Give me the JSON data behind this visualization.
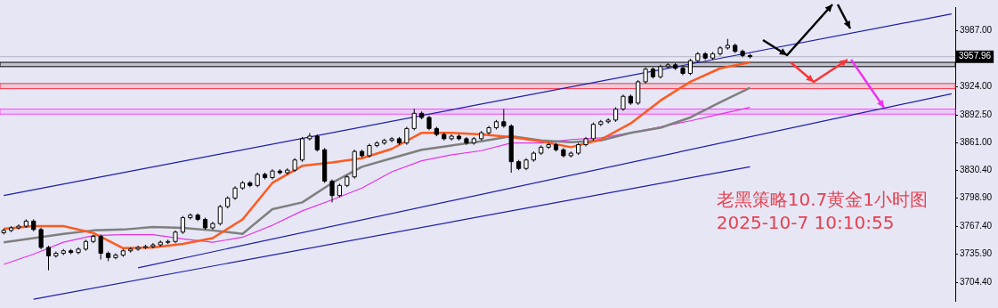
{
  "chart_data": {
    "type": "candlestick",
    "categories": [
      null,
      null,
      null,
      null,
      null,
      null,
      null,
      null,
      null,
      null,
      null,
      null,
      null,
      null,
      null,
      null,
      null,
      null,
      null,
      null,
      null,
      null,
      null,
      null,
      null,
      null,
      null,
      null,
      null,
      null,
      null,
      null,
      null,
      null,
      null,
      null,
      null,
      null,
      null,
      null,
      null,
      null,
      null,
      null,
      null,
      null,
      null,
      null,
      null,
      null,
      null,
      null,
      null,
      null,
      null,
      null,
      null,
      null,
      null,
      null,
      null,
      null,
      null,
      null,
      null,
      null,
      null,
      null,
      null,
      null,
      null,
      null,
      null,
      null,
      null,
      null,
      null,
      null,
      null,
      null,
      null,
      null,
      null,
      null,
      null,
      null,
      null,
      null,
      null,
      null,
      null,
      null,
      null,
      null,
      null,
      null,
      null,
      null,
      null,
      null,
      null,
      null,
      null,
      null,
      null,
      null,
      null,
      null,
      null,
      null,
      null,
      null,
      null,
      null,
      null,
      null,
      null,
      null,
      null,
      null,
      null,
      null,
      null,
      null,
      null,
      null,
      null,
      null
    ],
    "ohlc": [
      [
        3760.0,
        3764.6,
        3758.0,
        3762.6
      ],
      [
        3762.6,
        3767.5,
        3760.6,
        3765.5
      ],
      [
        3765.5,
        3769.4,
        3763.5,
        3767.4
      ],
      [
        3767.4,
        3775.1,
        3765.4,
        3773.1
      ],
      [
        3773.1,
        3775.1,
        3761.6,
        3763.6
      ],
      [
        3763.6,
        3765.6,
        3741.5,
        3743.5
      ],
      [
        3743.5,
        3745.5,
        3717.8,
        3734.0
      ],
      [
        3734.0,
        3738.9,
        3732.0,
        3736.9
      ],
      [
        3736.9,
        3741.7,
        3734.9,
        3739.7
      ],
      [
        3739.7,
        3741.7,
        3735.8,
        3737.8
      ],
      [
        3737.8,
        3743.6,
        3735.8,
        3741.6
      ],
      [
        3741.6,
        3752.2,
        3739.6,
        3750.2
      ],
      [
        3750.2,
        3757.9,
        3748.2,
        3755.9
      ],
      [
        3755.9,
        3757.9,
        3730.0,
        3736.9
      ],
      [
        3736.9,
        3738.9,
        3728.0,
        3732.1
      ],
      [
        3732.1,
        3736.9,
        3730.1,
        3734.9
      ],
      [
        3734.9,
        3741.7,
        3732.9,
        3739.7
      ],
      [
        3739.7,
        3743.6,
        3737.7,
        3741.6
      ],
      [
        3741.6,
        3745.5,
        3739.6,
        3743.5
      ],
      [
        3743.5,
        3746.5,
        3741.5,
        3744.5
      ],
      [
        3744.5,
        3748.4,
        3742.5,
        3746.4
      ],
      [
        3746.4,
        3751.3,
        3744.4,
        3749.3
      ],
      [
        3749.3,
        3752.2,
        3747.3,
        3750.2
      ],
      [
        3750.2,
        3762.7,
        3748.2,
        3760.7
      ],
      [
        3760.7,
        3778.9,
        3758.7,
        3776.9
      ],
      [
        3776.9,
        3781.8,
        3774.9,
        3779.8
      ],
      [
        3779.8,
        3781.8,
        3773.0,
        3775.0
      ],
      [
        3775.0,
        3777.0,
        3763.5,
        3765.5
      ],
      [
        3765.5,
        3772.3,
        3763.5,
        3770.3
      ],
      [
        3770.3,
        3791.4,
        3768.3,
        3789.4
      ],
      [
        3789.4,
        3800.9,
        3787.4,
        3798.9
      ],
      [
        3798.9,
        3812.3,
        3796.9,
        3810.3
      ],
      [
        3810.3,
        3818.1,
        3808.3,
        3816.1
      ],
      [
        3816.1,
        3818.1,
        3811.2,
        3813.2
      ],
      [
        3813.2,
        3827.6,
        3811.2,
        3825.6
      ],
      [
        3825.6,
        3827.6,
        3820.0,
        3822.0
      ],
      [
        3822.0,
        3831.4,
        3820.0,
        3829.4
      ],
      [
        3829.4,
        3831.4,
        3825.5,
        3827.5
      ],
      [
        3827.5,
        3832.4,
        3825.5,
        3830.4
      ],
      [
        3830.4,
        3843.8,
        3828.4,
        3841.8
      ],
      [
        3841.8,
        3867.7,
        3839.8,
        3865.7
      ],
      [
        3865.7,
        3872.0,
        3863.7,
        3868.6
      ],
      [
        3868.6,
        3870.6,
        3851.3,
        3853.3
      ],
      [
        3853.3,
        3855.3,
        3816.0,
        3818.0
      ],
      [
        3818.0,
        3820.0,
        3794.1,
        3801.8
      ],
      [
        3801.8,
        3815.2,
        3799.8,
        3813.2
      ],
      [
        3813.2,
        3824.8,
        3811.2,
        3822.8
      ],
      [
        3822.8,
        3853.4,
        3820.8,
        3851.4
      ],
      [
        3851.4,
        3853.4,
        3844.6,
        3846.6
      ],
      [
        3846.6,
        3860.1,
        3844.6,
        3858.1
      ],
      [
        3858.1,
        3862.9,
        3856.1,
        3860.9
      ],
      [
        3860.9,
        3865.8,
        3858.9,
        3863.8
      ],
      [
        3863.8,
        3867.7,
        3861.8,
        3865.7
      ],
      [
        3865.7,
        3867.7,
        3858.9,
        3860.9
      ],
      [
        3860.9,
        3879.2,
        3858.9,
        3877.2
      ],
      [
        3877.2,
        3899.5,
        3875.2,
        3894.3
      ],
      [
        3894.3,
        3896.3,
        3887.6,
        3889.6
      ],
      [
        3889.6,
        3891.6,
        3875.2,
        3877.2
      ],
      [
        3877.2,
        3879.2,
        3868.5,
        3870.5
      ],
      [
        3870.5,
        3872.5,
        3863.7,
        3865.7
      ],
      [
        3865.7,
        3870.6,
        3863.7,
        3868.6
      ],
      [
        3868.6,
        3870.6,
        3863.7,
        3865.7
      ],
      [
        3865.7,
        3867.7,
        3858.9,
        3860.9
      ],
      [
        3860.9,
        3867.7,
        3858.9,
        3865.7
      ],
      [
        3865.7,
        3874.4,
        3863.7,
        3872.4
      ],
      [
        3872.4,
        3880.1,
        3870.4,
        3878.1
      ],
      [
        3878.1,
        3886.8,
        3876.1,
        3884.8
      ],
      [
        3884.8,
        3899.1,
        3878.0,
        3880.0
      ],
      [
        3880.0,
        3882.0,
        3827.5,
        3839.9
      ],
      [
        3839.9,
        3841.9,
        3830.3,
        3832.3
      ],
      [
        3832.3,
        3843.8,
        3830.3,
        3841.8
      ],
      [
        3841.8,
        3851.5,
        3839.8,
        3849.5
      ],
      [
        3849.5,
        3858.2,
        3847.5,
        3856.2
      ],
      [
        3856.2,
        3861.0,
        3854.2,
        3859.0
      ],
      [
        3859.0,
        3861.0,
        3851.3,
        3853.3
      ],
      [
        3853.3,
        3855.3,
        3844.6,
        3846.6
      ],
      [
        3846.6,
        3851.5,
        3844.6,
        3849.5
      ],
      [
        3849.5,
        3861.0,
        3847.5,
        3859.0
      ],
      [
        3859.0,
        3867.7,
        3857.0,
        3865.7
      ],
      [
        3865.7,
        3883.9,
        3863.7,
        3881.9
      ],
      [
        3881.9,
        3886.8,
        3879.9,
        3884.8
      ],
      [
        3884.8,
        3888.7,
        3882.8,
        3886.7
      ],
      [
        3886.7,
        3901.1,
        3884.7,
        3899.1
      ],
      [
        3899.1,
        3915.4,
        3897.1,
        3913.4
      ],
      [
        3913.4,
        3915.4,
        3903.8,
        3905.8
      ],
      [
        3905.8,
        3931.7,
        3903.8,
        3929.7
      ],
      [
        3929.7,
        3946.0,
        3927.7,
        3944.0
      ],
      [
        3944.0,
        3946.0,
        3933.4,
        3935.4
      ],
      [
        3935.4,
        3948.8,
        3933.4,
        3946.8
      ],
      [
        3946.8,
        3950.8,
        3944.8,
        3948.8
      ],
      [
        3948.8,
        3950.8,
        3942.9,
        3944.9
      ],
      [
        3944.9,
        3946.9,
        3937.2,
        3939.2
      ],
      [
        3939.2,
        3955.5,
        3937.2,
        3953.5
      ],
      [
        3953.5,
        3963.2,
        3951.5,
        3961.2
      ],
      [
        3961.2,
        3963.2,
        3954.4,
        3956.4
      ],
      [
        3956.4,
        3963.2,
        3954.4,
        3961.2
      ],
      [
        3961.2,
        3969.8,
        3959.2,
        3967.8
      ],
      [
        3967.8,
        3978.0,
        3965.8,
        3970.7
      ],
      [
        3970.7,
        3972.7,
        3962.0,
        3964.0
      ],
      [
        3964.0,
        3966.0,
        3957.3,
        3959.3
      ],
      [
        3959.3,
        3961.3,
        3956.0,
        3957.96
      ],
      null,
      null,
      null,
      null,
      null,
      null,
      null,
      null,
      null,
      null,
      null,
      null,
      null,
      null,
      null,
      null,
      null,
      null,
      null,
      null,
      null,
      null,
      null,
      null,
      null,
      null,
      null
    ],
    "series": [
      {
        "type": "line",
        "color": "#ff5a1e",
        "values": [
          3764.5,
          null,
          null,
          null,
          3767.4,
          null,
          null,
          null,
          3767.4,
          null,
          null,
          null,
          3759.8,
          null,
          null,
          null,
          3742.6,
          null,
          null,
          null,
          3743.5,
          null,
          null,
          null,
          3747.4,
          null,
          null,
          null,
          3754.0,
          null,
          null,
          null,
          3775.0,
          null,
          null,
          null,
          3816.1,
          null,
          null,
          null,
          3835.2,
          null,
          null,
          null,
          3839.0,
          null,
          null,
          null,
          3843.8,
          null,
          null,
          null,
          3854.3,
          null,
          null,
          null,
          3872.4,
          null,
          null,
          null,
          3872.4,
          null,
          null,
          null,
          3870.5,
          null,
          null,
          null,
          3867.6,
          null,
          null,
          null,
          3862.8,
          null,
          null,
          null,
          3856.2,
          null,
          null,
          null,
          3864.8,
          null,
          null,
          null,
          3882.9,
          null,
          null,
          null,
          3908.7,
          null,
          null,
          null,
          3929.7,
          null,
          null,
          null,
          3944.9,
          null,
          null,
          null,
          3951.6,
          null,
          null,
          null,
          null,
          null,
          null,
          null,
          null,
          null,
          null,
          null,
          null,
          null,
          null,
          null,
          null,
          null,
          null,
          null,
          null,
          null,
          null,
          null,
          null,
          null,
          null,
          null
        ]
      },
      {
        "type": "line",
        "color": "#7f7f7f",
        "values": [
          3749.3,
          null,
          null,
          null,
          3754.0,
          null,
          null,
          null,
          3758.8,
          null,
          null,
          null,
          3762.6,
          null,
          null,
          null,
          3763.6,
          null,
          null,
          null,
          3766.4,
          null,
          null,
          null,
          3765.5,
          null,
          null,
          null,
          3762.6,
          null,
          null,
          null,
          3758.8,
          null,
          null,
          null,
          3786.5,
          null,
          null,
          null,
          3794.1,
          null,
          null,
          null,
          3816.1,
          null,
          null,
          null,
          3834.2,
          null,
          null,
          null,
          3843.8,
          null,
          null,
          null,
          3853.3,
          null,
          null,
          null,
          3858.1,
          null,
          null,
          null,
          3862.8,
          null,
          null,
          null,
          3868.6,
          null,
          null,
          null,
          3863.8,
          null,
          null,
          null,
          3861.9,
          null,
          null,
          null,
          3863.8,
          null,
          null,
          null,
          3872.4,
          null,
          null,
          null,
          3878.1,
          null,
          null,
          null,
          3889.6,
          null,
          null,
          null,
          3906.8,
          null,
          null,
          null,
          3923.0,
          null,
          null,
          null,
          null,
          null,
          null,
          null,
          null,
          null,
          null,
          null,
          null,
          null,
          null,
          null,
          null,
          null,
          null,
          null,
          null,
          null,
          null,
          null,
          null,
          null,
          null,
          null
        ]
      },
      {
        "type": "line",
        "color": "#e632e6",
        "values": [
          3724.4,
          null,
          null,
          null,
          3735.9,
          null,
          null,
          null,
          3749.3,
          null,
          null,
          null,
          3756.9,
          null,
          null,
          null,
          3757.9,
          null,
          null,
          null,
          3757.9,
          null,
          null,
          null,
          3753.1,
          null,
          null,
          null,
          3749.3,
          null,
          null,
          null,
          3755.0,
          null,
          null,
          null,
          3768.4,
          null,
          null,
          null,
          3784.6,
          null,
          null,
          null,
          3797.0,
          null,
          null,
          null,
          3810.3,
          null,
          null,
          null,
          3828.5,
          null,
          null,
          null,
          3840.9,
          null,
          null,
          null,
          3847.6,
          null,
          null,
          null,
          3852.3,
          null,
          null,
          null,
          3860.9,
          null,
          null,
          null,
          3860.9,
          null,
          null,
          null,
          3864.8,
          null,
          null,
          null,
          3866.7,
          null,
          null,
          null,
          3872.4,
          null,
          null,
          null,
          3879.1,
          null,
          null,
          null,
          3885.8,
          null,
          null,
          null,
          3893.4,
          null,
          null,
          null,
          3901.0,
          null,
          null,
          null,
          null,
          null,
          null,
          null,
          null,
          null,
          null,
          null,
          null,
          null,
          null,
          null,
          null,
          null,
          null,
          null,
          null,
          null,
          null,
          null,
          null,
          null,
          null,
          null
        ]
      },
      {
        "type": "line",
        "color": "#1c1ca8",
        "values": [
          3801.8,
          null,
          null,
          null,
          null,
          null,
          null,
          null,
          null,
          null,
          null,
          null,
          null,
          null,
          null,
          null,
          null,
          null,
          null,
          null,
          null,
          null,
          null,
          null,
          null,
          null,
          null,
          null,
          null,
          null,
          null,
          null,
          null,
          null,
          null,
          null,
          null,
          null,
          null,
          null,
          null,
          null,
          null,
          null,
          null,
          null,
          null,
          null,
          null,
          null,
          null,
          null,
          null,
          null,
          null,
          null,
          null,
          null,
          null,
          null,
          null,
          null,
          null,
          null,
          null,
          null,
          null,
          null,
          null,
          null,
          null,
          null,
          null,
          null,
          null,
          null,
          null,
          null,
          null,
          null,
          null,
          null,
          null,
          null,
          null,
          null,
          null,
          null,
          null,
          null,
          null,
          null,
          null,
          null,
          null,
          null,
          null,
          null,
          null,
          null,
          null,
          null,
          null,
          null,
          null,
          null,
          null,
          null,
          null,
          null,
          null,
          null,
          null,
          null,
          null,
          null,
          null,
          null,
          null,
          null,
          null,
          null,
          null,
          null,
          null,
          null,
          null,
          4006.0
        ]
      },
      {
        "type": "line",
        "color": "#1c1ca8",
        "values": [
          null,
          null,
          null,
          null,
          null,
          null,
          null,
          null,
          null,
          null,
          null,
          null,
          null,
          null,
          null,
          null,
          null,
          null,
          3720.6,
          null,
          null,
          null,
          null,
          null,
          null,
          null,
          null,
          null,
          null,
          null,
          null,
          null,
          null,
          null,
          null,
          null,
          null,
          null,
          null,
          null,
          null,
          null,
          null,
          null,
          null,
          null,
          null,
          null,
          null,
          null,
          null,
          null,
          null,
          null,
          null,
          null,
          null,
          null,
          null,
          null,
          null,
          null,
          null,
          null,
          null,
          null,
          null,
          null,
          null,
          null,
          null,
          null,
          null,
          null,
          null,
          null,
          null,
          null,
          null,
          null,
          null,
          null,
          null,
          null,
          null,
          null,
          null,
          null,
          null,
          null,
          null,
          null,
          null,
          null,
          null,
          null,
          null,
          null,
          null,
          null,
          null,
          null,
          null,
          null,
          null,
          null,
          null,
          null,
          null,
          null,
          null,
          null,
          null,
          null,
          null,
          null,
          null,
          null,
          null,
          null,
          null,
          null,
          null,
          null,
          null,
          null,
          null,
          3916.3
        ]
      },
      {
        "type": "line",
        "color": "#1c1ca8",
        "values": [
          null,
          null,
          null,
          null,
          3685.3,
          null,
          null,
          null,
          null,
          null,
          null,
          null,
          null,
          null,
          null,
          null,
          null,
          null,
          null,
          null,
          null,
          null,
          null,
          null,
          null,
          null,
          null,
          null,
          null,
          null,
          null,
          null,
          null,
          null,
          null,
          null,
          null,
          null,
          null,
          null,
          null,
          null,
          null,
          null,
          null,
          null,
          null,
          null,
          null,
          null,
          null,
          null,
          null,
          null,
          null,
          null,
          null,
          null,
          null,
          null,
          null,
          null,
          null,
          null,
          null,
          null,
          null,
          null,
          null,
          null,
          null,
          null,
          null,
          null,
          null,
          null,
          null,
          null,
          null,
          null,
          null,
          null,
          null,
          null,
          null,
          null,
          null,
          null,
          null,
          null,
          null,
          null,
          null,
          null,
          null,
          null,
          null,
          null,
          null,
          null,
          3834.2,
          null,
          null,
          null,
          null,
          null,
          null,
          null,
          null,
          null,
          null,
          null,
          null,
          null,
          null,
          null,
          null,
          null,
          null,
          null,
          null,
          null,
          null,
          null,
          null,
          null,
          null,
          null
        ]
      }
    ],
    "ylim": [
      3683.4,
      4013.7
    ],
    "yticks": [
      {
        "value": 3987,
        "label": "3987.00"
      },
      {
        "value": 3924,
        "label": "3924.00"
      },
      {
        "value": 3892.5,
        "label": "3892.50"
      },
      {
        "value": 3861,
        "label": "3861.00"
      },
      {
        "value": 3830.4,
        "label": "3830.40"
      },
      {
        "value": 3798.9,
        "label": "3798.90"
      },
      {
        "value": 3767.4,
        "label": "3767.40"
      },
      {
        "value": 3735.9,
        "label": "3735.90"
      },
      {
        "value": 3704.4,
        "label": "3704.40"
      }
    ],
    "ref_lines": [
      {
        "axis": "y",
        "value": 3957.96,
        "label": "3957.96",
        "color": "#b4b4c4"
      }
    ],
    "bands": [
      {
        "axis": "y",
        "from": 3946.8,
        "to": 3951.6,
        "color": "#000000"
      },
      {
        "axis": "y",
        "from": 3922.0,
        "to": 3927.8,
        "color": "#ff3344"
      },
      {
        "axis": "y",
        "from": 3893.4,
        "to": 3899.1,
        "color": "#ff44ff"
      }
    ],
    "annotations": [
      "老黑策略10.7黄金1小时图",
      "2025-10-7 10:10:55"
    ],
    "legend": false,
    "grid": false,
    "tick_labels": "y"
  }
}
